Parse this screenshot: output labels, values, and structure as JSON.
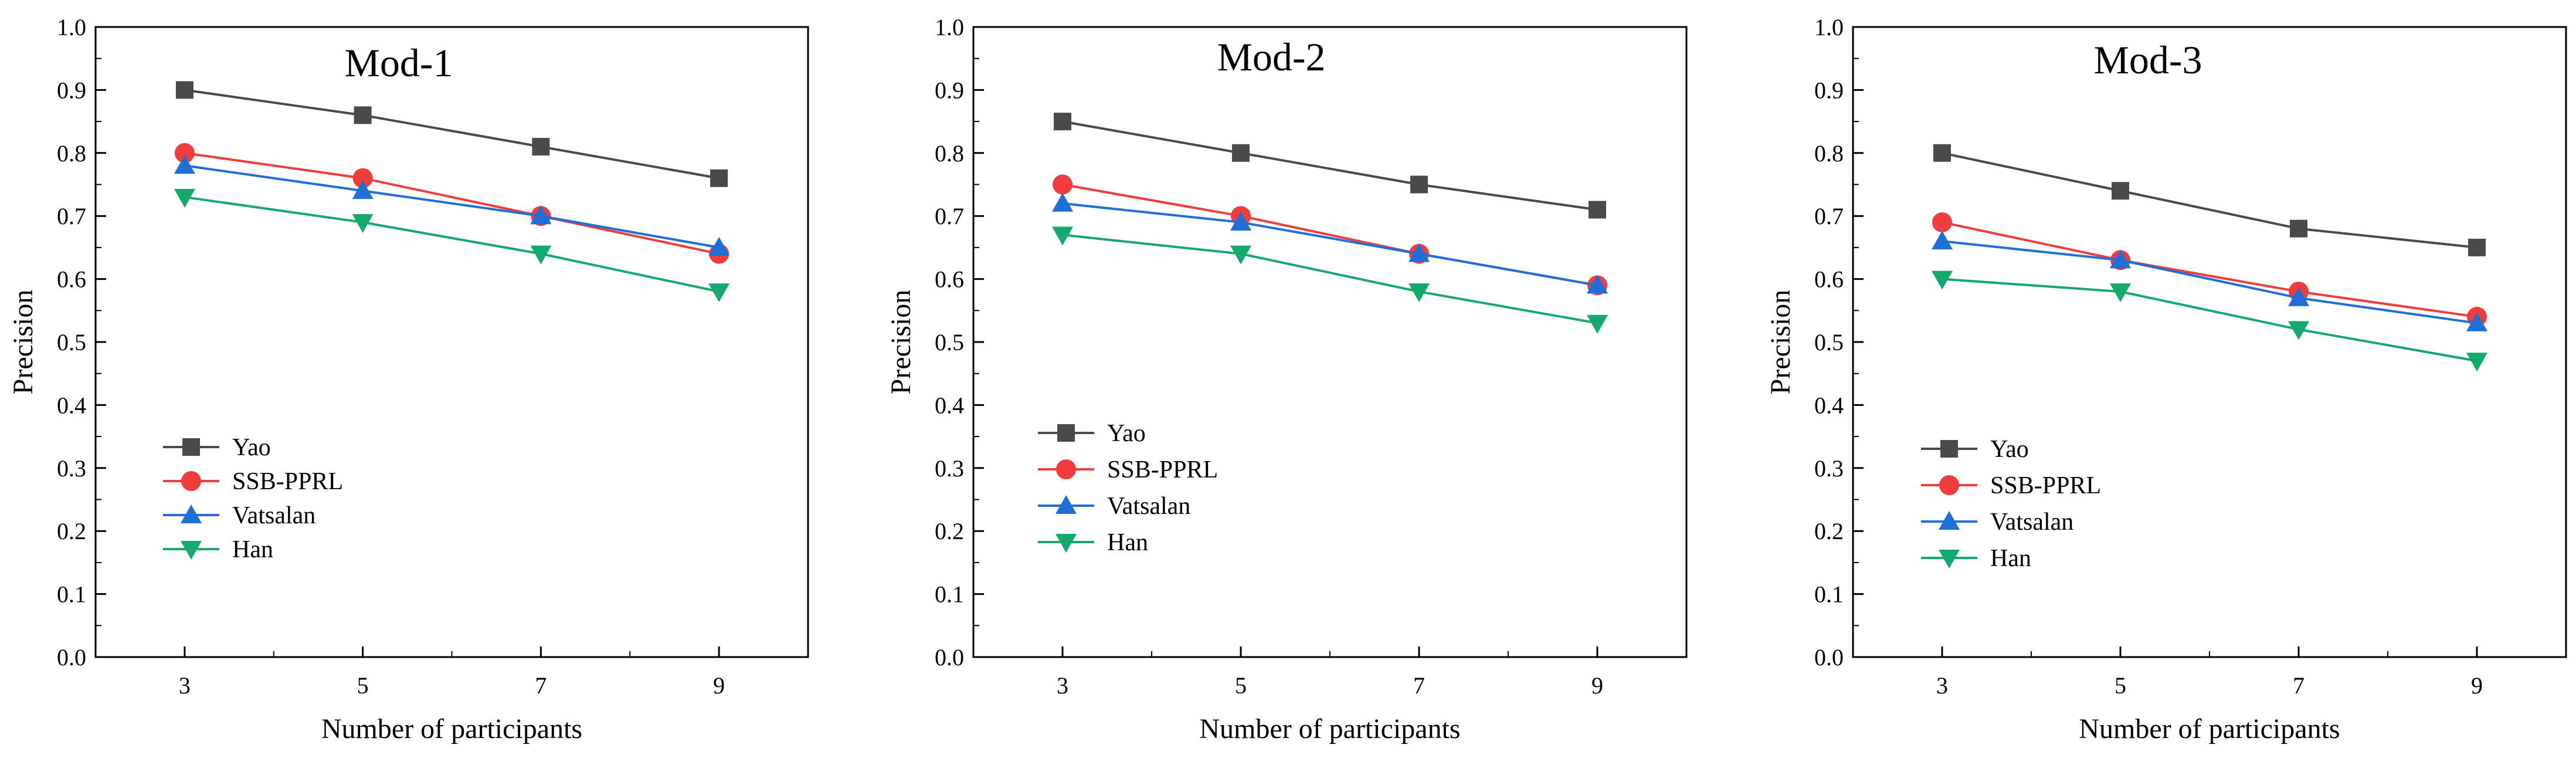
{
  "chart_data": [
    {
      "type": "line",
      "title": "Mod-1",
      "xlabel": "Number of participants",
      "ylabel": "Precision",
      "x": [
        3,
        5,
        7,
        9
      ],
      "xlim": [
        2,
        10
      ],
      "ylim": [
        0.0,
        1.0
      ],
      "x_ticks": [
        "3",
        "5",
        "7",
        "9"
      ],
      "y_ticks": [
        "0.0",
        "0.1",
        "0.2",
        "0.3",
        "0.4",
        "0.5",
        "0.6",
        "0.7",
        "0.8",
        "0.9",
        "1.0"
      ],
      "grid": false,
      "legend_position": "lower-left",
      "series": [
        {
          "name": "Yao",
          "values": [
            0.9,
            0.86,
            0.81,
            0.76
          ],
          "color": "#4a4a4a",
          "marker": "square"
        },
        {
          "name": "SSB-PPRL",
          "values": [
            0.8,
            0.76,
            0.7,
            0.64
          ],
          "color": "#f03c3c",
          "marker": "circle"
        },
        {
          "name": "Vatsalan",
          "values": [
            0.78,
            0.74,
            0.7,
            0.65
          ],
          "color": "#1f6fd8",
          "marker": "triangle-up"
        },
        {
          "name": "Han",
          "values": [
            0.73,
            0.69,
            0.64,
            0.58
          ],
          "color": "#14aa6e",
          "marker": "triangle-down"
        }
      ]
    },
    {
      "type": "line",
      "title": "Mod-2",
      "xlabel": "Number of participants",
      "ylabel": "Precision",
      "x": [
        3,
        5,
        7,
        9
      ],
      "xlim": [
        2,
        10
      ],
      "ylim": [
        0.0,
        1.0
      ],
      "x_ticks": [
        "3",
        "5",
        "7",
        "9"
      ],
      "y_ticks": [
        "0.0",
        "0.1",
        "0.2",
        "0.3",
        "0.4",
        "0.5",
        "0.6",
        "0.7",
        "0.8",
        "0.9",
        "1.0"
      ],
      "grid": false,
      "legend_position": "lower-left",
      "series": [
        {
          "name": "Yao",
          "values": [
            0.85,
            0.8,
            0.75,
            0.71
          ],
          "color": "#4a4a4a",
          "marker": "square"
        },
        {
          "name": "SSB-PPRL",
          "values": [
            0.75,
            0.7,
            0.64,
            0.59
          ],
          "color": "#f03c3c",
          "marker": "circle"
        },
        {
          "name": "Vatsalan",
          "values": [
            0.72,
            0.69,
            0.64,
            0.59
          ],
          "color": "#1f6fd8",
          "marker": "triangle-up"
        },
        {
          "name": "Han",
          "values": [
            0.67,
            0.64,
            0.58,
            0.53
          ],
          "color": "#14aa6e",
          "marker": "triangle-down"
        }
      ]
    },
    {
      "type": "line",
      "title": "Mod-3",
      "xlabel": "Number of participants",
      "ylabel": "Precision",
      "x": [
        3,
        5,
        7,
        9
      ],
      "xlim": [
        2,
        10
      ],
      "ylim": [
        0.0,
        1.0
      ],
      "x_ticks": [
        "3",
        "5",
        "7",
        "9"
      ],
      "y_ticks": [
        "0.0",
        "0.1",
        "0.2",
        "0.3",
        "0.4",
        "0.5",
        "0.6",
        "0.7",
        "0.8",
        "0.9",
        "1.0"
      ],
      "grid": false,
      "legend_position": "lower-left",
      "series": [
        {
          "name": "Yao",
          "values": [
            0.8,
            0.74,
            0.68,
            0.65
          ],
          "color": "#4a4a4a",
          "marker": "square"
        },
        {
          "name": "SSB-PPRL",
          "values": [
            0.69,
            0.63,
            0.58,
            0.54
          ],
          "color": "#f03c3c",
          "marker": "circle"
        },
        {
          "name": "Vatsalan",
          "values": [
            0.66,
            0.63,
            0.57,
            0.53
          ],
          "color": "#1f6fd8",
          "marker": "triangle-up"
        },
        {
          "name": "Han",
          "values": [
            0.6,
            0.58,
            0.52,
            0.47
          ],
          "color": "#14aa6e",
          "marker": "triangle-down"
        }
      ]
    }
  ]
}
